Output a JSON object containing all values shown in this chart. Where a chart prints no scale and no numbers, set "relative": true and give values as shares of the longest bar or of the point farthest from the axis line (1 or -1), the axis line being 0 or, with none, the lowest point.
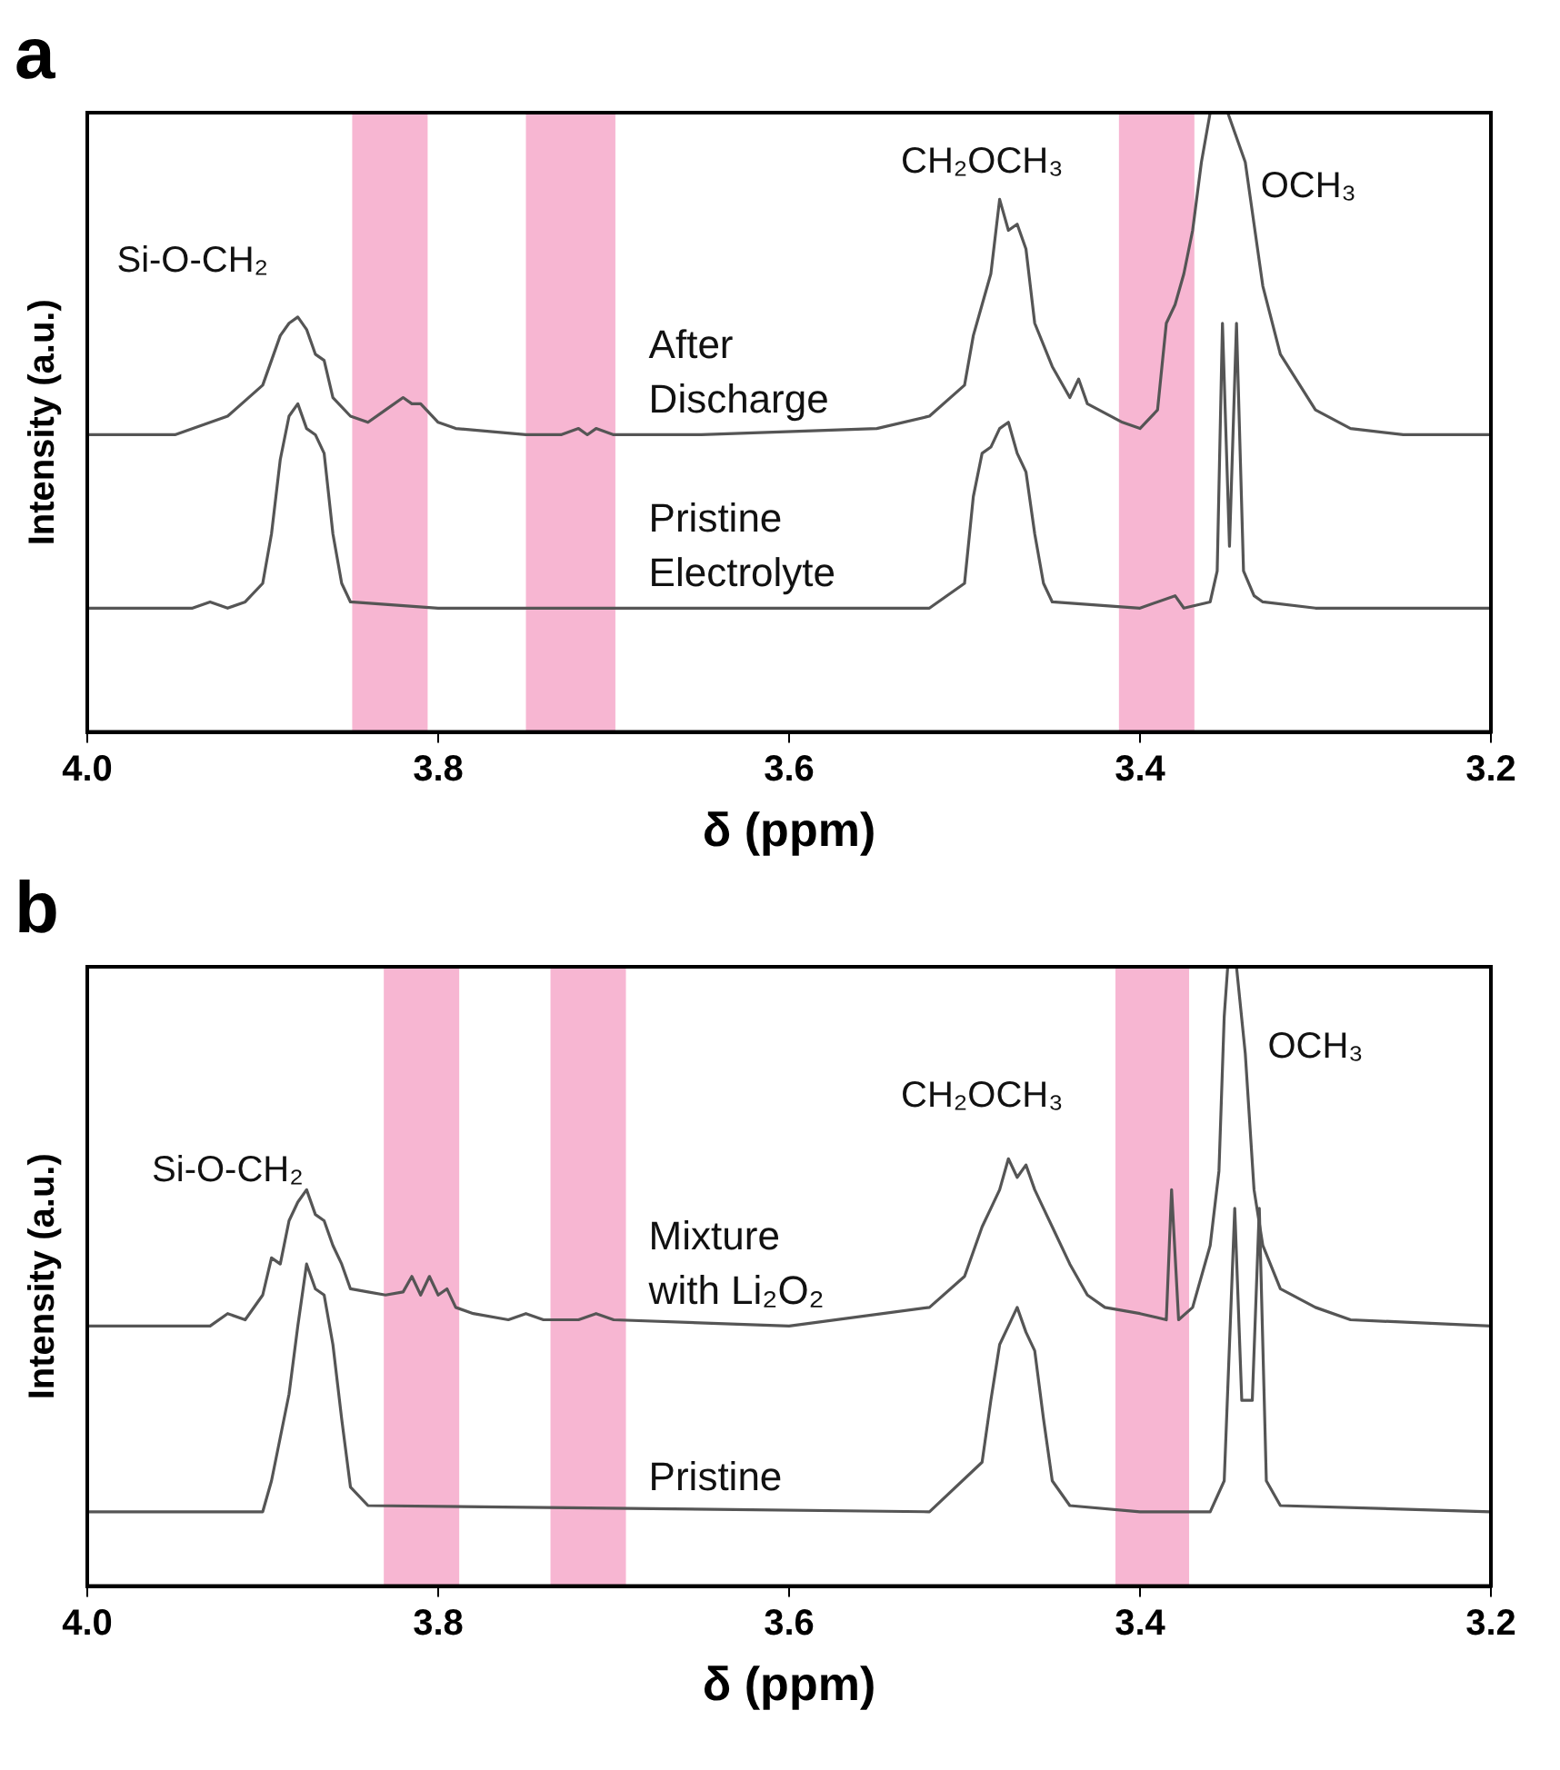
{
  "chart_data": [
    {
      "type": "line",
      "title": "a",
      "xlabel": "δ (ppm)",
      "ylabel": "Intensity (a.u.)",
      "relative": true,
      "xlim": [
        4.0,
        3.2
      ],
      "xticks": [
        {
          "value": 4.0,
          "label": "4.0"
        },
        {
          "value": 3.8,
          "label": "3.8"
        },
        {
          "value": 3.6,
          "label": "3.6"
        },
        {
          "value": 3.4,
          "label": "3.4"
        },
        {
          "value": 3.2,
          "label": "3.2"
        }
      ],
      "bands": [
        {
          "axis": "x",
          "from": 3.849,
          "to": 3.806,
          "color": "#f7b6d2"
        },
        {
          "axis": "x",
          "from": 3.75,
          "to": 3.699,
          "color": "#f7b6d2"
        },
        {
          "axis": "x",
          "from": 3.412,
          "to": 3.369,
          "color": "#f7b6d2"
        }
      ],
      "annotations": [
        "Si-O-CH₂",
        "CH₂OCH₃",
        "OCH₃"
      ],
      "series": [
        {
          "name": "After Discharge",
          "color": "#555555",
          "x": [
            4.0,
            3.95,
            3.92,
            3.9,
            3.89,
            3.885,
            3.88,
            3.875,
            3.87,
            3.865,
            3.86,
            3.85,
            3.84,
            3.83,
            3.82,
            3.815,
            3.81,
            3.8,
            3.79,
            3.75,
            3.73,
            3.72,
            3.715,
            3.71,
            3.7,
            3.65,
            3.55,
            3.52,
            3.5,
            3.495,
            3.49,
            3.485,
            3.48,
            3.475,
            3.47,
            3.465,
            3.46,
            3.45,
            3.44,
            3.435,
            3.43,
            3.41,
            3.4,
            3.39,
            3.385,
            3.38,
            3.375,
            3.37,
            3.365,
            3.36,
            3.35,
            3.34,
            3.33,
            3.32,
            3.3,
            3.28,
            3.25,
            3.2
          ],
          "values": [
            0.48,
            0.48,
            0.51,
            0.56,
            0.64,
            0.66,
            0.67,
            0.65,
            0.61,
            0.6,
            0.54,
            0.51,
            0.5,
            0.52,
            0.54,
            0.53,
            0.53,
            0.5,
            0.49,
            0.48,
            0.48,
            0.49,
            0.48,
            0.49,
            0.48,
            0.48,
            0.49,
            0.51,
            0.56,
            0.64,
            0.69,
            0.74,
            0.86,
            0.81,
            0.82,
            0.78,
            0.66,
            0.59,
            0.54,
            0.57,
            0.53,
            0.5,
            0.49,
            0.52,
            0.66,
            0.69,
            0.74,
            0.81,
            0.92,
            1.0,
            1.0,
            0.92,
            0.72,
            0.61,
            0.52,
            0.49,
            0.48,
            0.48
          ]
        },
        {
          "name": "Pristine Electrolyte",
          "color": "#555555",
          "x": [
            4.0,
            3.94,
            3.93,
            3.92,
            3.91,
            3.9,
            3.895,
            3.89,
            3.885,
            3.88,
            3.875,
            3.87,
            3.865,
            3.86,
            3.855,
            3.85,
            3.8,
            3.52,
            3.5,
            3.495,
            3.49,
            3.485,
            3.48,
            3.475,
            3.47,
            3.465,
            3.46,
            3.455,
            3.45,
            3.4,
            3.38,
            3.375,
            3.36,
            3.356,
            3.353,
            3.349,
            3.345,
            3.341,
            3.335,
            3.33,
            3.3,
            3.2
          ],
          "values": [
            0.2,
            0.2,
            0.21,
            0.2,
            0.21,
            0.24,
            0.32,
            0.44,
            0.51,
            0.53,
            0.49,
            0.48,
            0.45,
            0.32,
            0.24,
            0.21,
            0.2,
            0.2,
            0.24,
            0.38,
            0.45,
            0.46,
            0.49,
            0.5,
            0.45,
            0.42,
            0.32,
            0.24,
            0.21,
            0.2,
            0.22,
            0.2,
            0.21,
            0.26,
            0.66,
            0.3,
            0.66,
            0.26,
            0.22,
            0.21,
            0.2,
            0.2
          ]
        }
      ]
    },
    {
      "type": "line",
      "title": "b",
      "xlabel": "δ (ppm)",
      "ylabel": "Intensity (a.u.)",
      "relative": true,
      "xlim": [
        4.0,
        3.2
      ],
      "xticks": [
        {
          "value": 4.0,
          "label": "4.0"
        },
        {
          "value": 3.8,
          "label": "3.8"
        },
        {
          "value": 3.6,
          "label": "3.6"
        },
        {
          "value": 3.4,
          "label": "3.4"
        },
        {
          "value": 3.2,
          "label": "3.2"
        }
      ],
      "bands": [
        {
          "axis": "x",
          "from": 3.831,
          "to": 3.788,
          "color": "#f7b6d2"
        },
        {
          "axis": "x",
          "from": 3.736,
          "to": 3.693,
          "color": "#f7b6d2"
        },
        {
          "axis": "x",
          "from": 3.414,
          "to": 3.372,
          "color": "#f7b6d2"
        }
      ],
      "annotations": [
        "Si-O-CH₂",
        "CH₂OCH₃",
        "OCH₃"
      ],
      "series": [
        {
          "name": "Mixture with Li₂O₂",
          "color": "#555555",
          "x": [
            4.0,
            3.93,
            3.92,
            3.91,
            3.9,
            3.895,
            3.89,
            3.885,
            3.88,
            3.875,
            3.87,
            3.865,
            3.86,
            3.855,
            3.85,
            3.84,
            3.83,
            3.82,
            3.815,
            3.81,
            3.805,
            3.8,
            3.795,
            3.79,
            3.78,
            3.76,
            3.75,
            3.74,
            3.72,
            3.71,
            3.7,
            3.6,
            3.52,
            3.5,
            3.49,
            3.485,
            3.48,
            3.475,
            3.47,
            3.465,
            3.46,
            3.455,
            3.45,
            3.44,
            3.43,
            3.42,
            3.4,
            3.385,
            3.382,
            3.378,
            3.37,
            3.36,
            3.355,
            3.352,
            3.35,
            3.345,
            3.34,
            3.335,
            3.33,
            3.32,
            3.3,
            3.28,
            3.2
          ],
          "values": [
            0.42,
            0.42,
            0.44,
            0.43,
            0.47,
            0.53,
            0.52,
            0.59,
            0.62,
            0.64,
            0.6,
            0.59,
            0.55,
            0.52,
            0.48,
            0.475,
            0.47,
            0.475,
            0.5,
            0.47,
            0.5,
            0.47,
            0.48,
            0.45,
            0.44,
            0.43,
            0.44,
            0.43,
            0.43,
            0.44,
            0.43,
            0.42,
            0.45,
            0.5,
            0.58,
            0.61,
            0.64,
            0.69,
            0.66,
            0.68,
            0.64,
            0.61,
            0.58,
            0.52,
            0.47,
            0.45,
            0.44,
            0.43,
            0.64,
            0.43,
            0.45,
            0.55,
            0.67,
            0.92,
            1.0,
            1.0,
            0.86,
            0.64,
            0.55,
            0.48,
            0.45,
            0.43,
            0.42
          ]
        },
        {
          "name": "Pristine",
          "color": "#555555",
          "x": [
            4.0,
            3.9,
            3.895,
            3.89,
            3.885,
            3.88,
            3.875,
            3.87,
            3.865,
            3.86,
            3.855,
            3.85,
            3.84,
            3.52,
            3.49,
            3.485,
            3.48,
            3.475,
            3.47,
            3.465,
            3.46,
            3.455,
            3.45,
            3.44,
            3.4,
            3.36,
            3.352,
            3.346,
            3.342,
            3.336,
            3.332,
            3.328,
            3.32,
            3.2
          ],
          "values": [
            0.12,
            0.12,
            0.17,
            0.24,
            0.31,
            0.42,
            0.52,
            0.48,
            0.47,
            0.39,
            0.27,
            0.16,
            0.13,
            0.12,
            0.2,
            0.3,
            0.39,
            0.42,
            0.45,
            0.41,
            0.38,
            0.27,
            0.17,
            0.13,
            0.12,
            0.12,
            0.17,
            0.61,
            0.3,
            0.3,
            0.61,
            0.17,
            0.13,
            0.12
          ]
        }
      ]
    }
  ]
}
